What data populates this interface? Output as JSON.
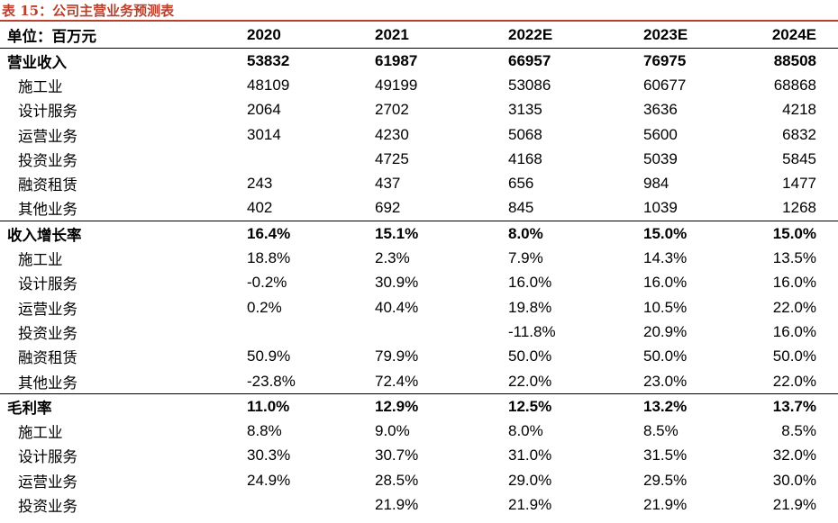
{
  "title": "表 15：公司主营业务预测表",
  "header": {
    "unit": "单位：百万元",
    "years": [
      "2020",
      "2021",
      "2022E",
      "2023E",
      "2024E"
    ]
  },
  "sections": [
    {
      "label": "营业收入",
      "values": [
        "53832",
        "61987",
        "66957",
        "76975",
        "88508"
      ],
      "rows": [
        {
          "label": "施工业",
          "values": [
            "48109",
            "49199",
            "53086",
            "60677",
            "68868"
          ]
        },
        {
          "label": "设计服务",
          "values": [
            "2064",
            "2702",
            "3135",
            "3636",
            "4218"
          ]
        },
        {
          "label": "运营业务",
          "values": [
            "3014",
            "4230",
            "5068",
            "5600",
            "6832"
          ]
        },
        {
          "label": "投资业务",
          "values": [
            "",
            "4725",
            "4168",
            "5039",
            "5845"
          ]
        },
        {
          "label": "融资租赁",
          "values": [
            "243",
            "437",
            "656",
            "984",
            "1477"
          ]
        },
        {
          "label": "其他业务",
          "values": [
            "402",
            "692",
            "845",
            "1039",
            "1268"
          ]
        }
      ]
    },
    {
      "label": "收入增长率",
      "values": [
        "16.4%",
        "15.1%",
        "8.0%",
        "15.0%",
        "15.0%"
      ],
      "rows": [
        {
          "label": "施工业",
          "values": [
            "18.8%",
            "2.3%",
            "7.9%",
            "14.3%",
            "13.5%"
          ]
        },
        {
          "label": "设计服务",
          "values": [
            "-0.2%",
            "30.9%",
            "16.0%",
            "16.0%",
            "16.0%"
          ]
        },
        {
          "label": "运营业务",
          "values": [
            "0.2%",
            "40.4%",
            "19.8%",
            "10.5%",
            "22.0%"
          ]
        },
        {
          "label": "投资业务",
          "values": [
            "",
            "",
            "-11.8%",
            "20.9%",
            "16.0%"
          ]
        },
        {
          "label": "融资租赁",
          "values": [
            "50.9%",
            "79.9%",
            "50.0%",
            "50.0%",
            "50.0%"
          ]
        },
        {
          "label": "其他业务",
          "values": [
            "-23.8%",
            "72.4%",
            "22.0%",
            "23.0%",
            "22.0%"
          ]
        }
      ]
    },
    {
      "label": "毛利率",
      "values": [
        "11.0%",
        "12.9%",
        "12.5%",
        "13.2%",
        "13.7%"
      ],
      "rows": [
        {
          "label": "施工业",
          "values": [
            "8.8%",
            "9.0%",
            "8.0%",
            "8.5%",
            "8.5%"
          ]
        },
        {
          "label": "设计服务",
          "values": [
            "30.3%",
            "30.7%",
            "31.0%",
            "31.5%",
            "32.0%"
          ]
        },
        {
          "label": "运营业务",
          "values": [
            "24.9%",
            "28.5%",
            "29.0%",
            "29.5%",
            "30.0%"
          ]
        },
        {
          "label": "投资业务",
          "values": [
            "",
            "21.9%",
            "21.9%",
            "21.9%",
            "21.9%"
          ]
        }
      ]
    }
  ]
}
